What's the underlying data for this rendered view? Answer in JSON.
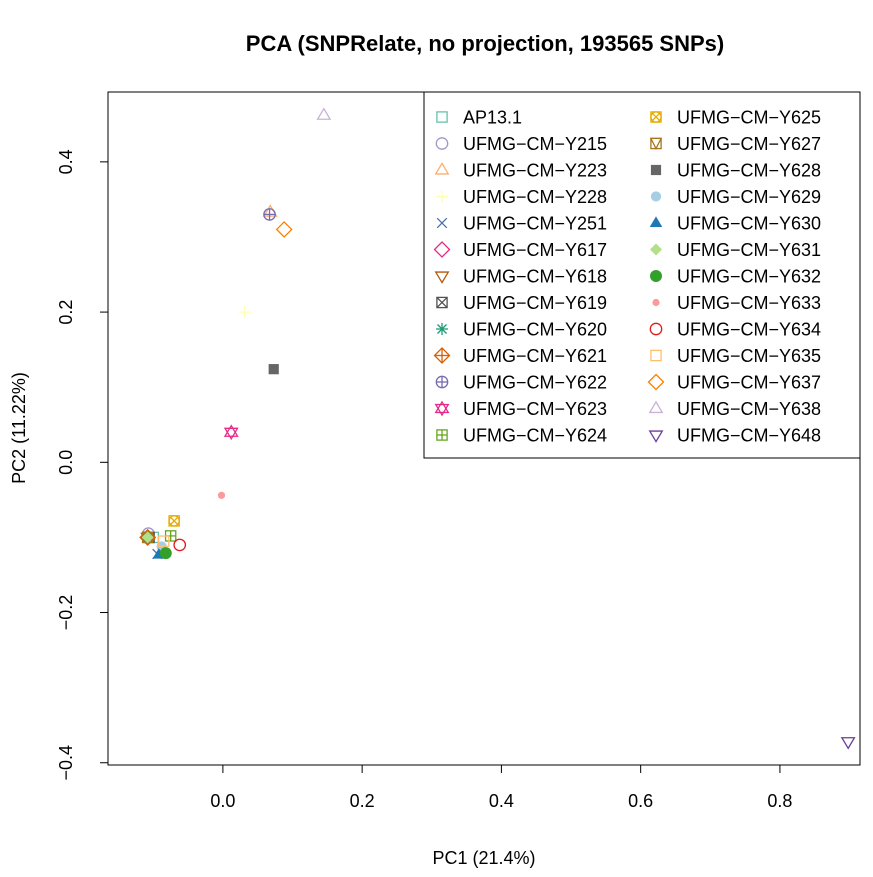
{
  "chart_data": {
    "type": "scatter",
    "title": "PCA (SNPRelate, no projection, 193565 SNPs)",
    "xlabel": "PC1 (21.4%)",
    "ylabel": "PC2 (11.22%)",
    "xlim": [
      -0.165,
      0.915
    ],
    "ylim": [
      -0.403,
      0.493
    ],
    "xticks": [
      0.0,
      0.2,
      0.4,
      0.6,
      0.8
    ],
    "xtick_labels": [
      "0.0",
      "0.2",
      "0.4",
      "0.6",
      "0.8"
    ],
    "yticks": [
      -0.4,
      -0.2,
      0.0,
      0.2,
      0.4
    ],
    "ytick_labels": [
      "−0.4",
      "−0.2",
      "0.0",
      "0.2",
      "0.4"
    ],
    "grid": false,
    "legend_position": "top-right",
    "series": [
      {
        "name": "AP13.1",
        "color": "#66C2A5",
        "marker": "square-open",
        "x": -0.1,
        "y": -0.1
      },
      {
        "name": "UFMG−CM−Y215",
        "color": "#9E9AC8",
        "marker": "circle-open",
        "x": -0.107,
        "y": -0.095
      },
      {
        "name": "UFMG−CM−Y223",
        "color": "#FDAE6B",
        "marker": "triangle-up-open",
        "x": 0.068,
        "y": 0.333
      },
      {
        "name": "UFMG−CM−Y228",
        "color": "#FFFFB3",
        "marker": "plus",
        "x": 0.031,
        "y": 0.2
      },
      {
        "name": "UFMG−CM−Y251",
        "color": "#4C72B0",
        "marker": "cross",
        "x": -0.094,
        "y": -0.122
      },
      {
        "name": "UFMG−CM−Y617",
        "color": "#E7298A",
        "marker": "diamond-open",
        "x": -0.108,
        "y": -0.1
      },
      {
        "name": "UFMG−CM−Y618",
        "color": "#B35806",
        "marker": "triangle-down-open",
        "x": -0.108,
        "y": -0.1
      },
      {
        "name": "UFMG−CM−Y619",
        "color": "#525252",
        "marker": "square-x",
        "x": -0.106,
        "y": -0.1
      },
      {
        "name": "UFMG−CM−Y620",
        "color": "#1B9E77",
        "marker": "asterisk",
        "x": -0.107,
        "y": -0.1
      },
      {
        "name": "UFMG−CM−Y621",
        "color": "#D95F02",
        "marker": "diamond-plus",
        "x": -0.108,
        "y": -0.1
      },
      {
        "name": "UFMG−CM−Y622",
        "color": "#756BB1",
        "marker": "circle-plus",
        "x": 0.067,
        "y": 0.33
      },
      {
        "name": "UFMG−CM−Y623",
        "color": "#E7298A",
        "marker": "star-of-david",
        "x": 0.012,
        "y": 0.04
      },
      {
        "name": "UFMG−CM−Y624",
        "color": "#66A61E",
        "marker": "square-plus",
        "x": -0.075,
        "y": -0.098
      },
      {
        "name": "UFMG−CM−Y625",
        "color": "#E6AB02",
        "marker": "circle-x-square",
        "x": -0.07,
        "y": -0.078
      },
      {
        "name": "UFMG−CM−Y627",
        "color": "#A6761D",
        "marker": "triangle-in-square",
        "x": -0.108,
        "y": -0.1
      },
      {
        "name": "UFMG−CM−Y628",
        "color": "#666666",
        "marker": "square-filled",
        "x": 0.073,
        "y": 0.124
      },
      {
        "name": "UFMG−CM−Y629",
        "color": "#A6CEE3",
        "marker": "circle-filled",
        "x": -0.088,
        "y": -0.112
      },
      {
        "name": "UFMG−CM−Y630",
        "color": "#1F78B4",
        "marker": "triangle-up-filled",
        "x": -0.092,
        "y": -0.123
      },
      {
        "name": "UFMG−CM−Y631",
        "color": "#B2DF8A",
        "marker": "diamond-filled",
        "x": -0.108,
        "y": -0.1
      },
      {
        "name": "UFMG−CM−Y632",
        "color": "#33A02C",
        "marker": "circle-filled-large",
        "x": -0.082,
        "y": -0.121
      },
      {
        "name": "UFMG−CM−Y633",
        "color": "#FB9A99",
        "marker": "circle-filled-small",
        "x": -0.002,
        "y": -0.044
      },
      {
        "name": "UFMG−CM−Y634",
        "color": "#E31A1C",
        "marker": "circle-open",
        "x": -0.062,
        "y": -0.11
      },
      {
        "name": "UFMG−CM−Y635",
        "color": "#FDBF6F",
        "marker": "square-open",
        "x": -0.085,
        "y": -0.105
      },
      {
        "name": "UFMG−CM−Y637",
        "color": "#FF7F00",
        "marker": "diamond-open",
        "x": 0.088,
        "y": 0.31
      },
      {
        "name": "UFMG−CM−Y638",
        "color": "#CAB2D6",
        "marker": "triangle-up-open",
        "x": 0.145,
        "y": 0.462
      },
      {
        "name": "UFMG−CM−Y648",
        "color": "#6A3D9A",
        "marker": "triangle-down-open",
        "x": 0.898,
        "y": -0.372
      }
    ]
  }
}
